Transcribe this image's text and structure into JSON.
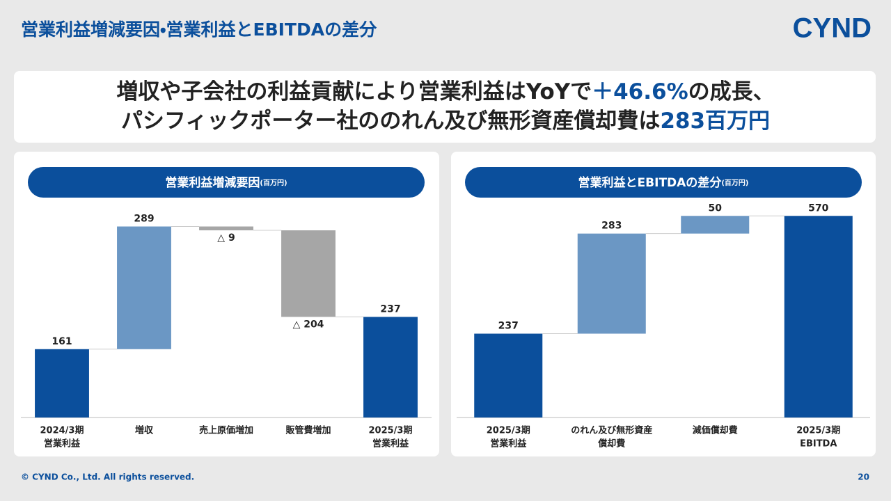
{
  "header": {
    "title": "営業利益増減要因・営業利益とEBITDAの差分",
    "logo": "CYND"
  },
  "headline": [
    [
      "増収や子会社の利益貢献により営業利益はYoYで",
      "＋46.6%",
      "の成長、"
    ],
    [
      "パシフィックポーター社ののれん及び無形資産償却費は",
      "283百万円"
    ]
  ],
  "chart_data": [
    {
      "type": "waterfall",
      "title": "営業利益増減要因",
      "unit": "(百万円)",
      "categories": [
        [
          "2024/3期",
          "営業利益"
        ],
        [
          "増収"
        ],
        [
          "売上原価増加"
        ],
        [
          "販管費増加"
        ],
        [
          "2025/3期",
          "営業利益"
        ]
      ],
      "values": [
        161,
        289,
        -9,
        -204,
        237
      ],
      "value_labels": [
        null,
        null,
        "△ 9",
        "△ 204",
        null
      ],
      "measure": [
        "total",
        "relative",
        "relative",
        "relative",
        "total"
      ],
      "colors": {
        "total": "#0b4f9c",
        "increase": "#6b97c4",
        "decrease": "#a6a6a6"
      },
      "ylim": [
        0,
        500
      ]
    },
    {
      "type": "waterfall",
      "title": "営業利益とEBITDAの差分",
      "unit": "(百万円)",
      "categories": [
        [
          "2025/3期",
          "営業利益"
        ],
        [
          "のれん及び無形資産",
          "償却費"
        ],
        [
          "減価償却費"
        ],
        [
          "2025/3期",
          "EBITDA"
        ]
      ],
      "values": [
        237,
        283,
        50,
        570
      ],
      "value_labels": [
        null,
        null,
        null,
        null
      ],
      "measure": [
        "total",
        "relative",
        "relative",
        "total"
      ],
      "colors": {
        "total": "#0b4f9c",
        "increase": "#6b97c4",
        "decrease": "#a6a6a6"
      },
      "ylim": [
        0,
        600
      ]
    }
  ],
  "footer": {
    "copyright": "© CYND Co., Ltd. All rights reserved.",
    "page": "20"
  }
}
